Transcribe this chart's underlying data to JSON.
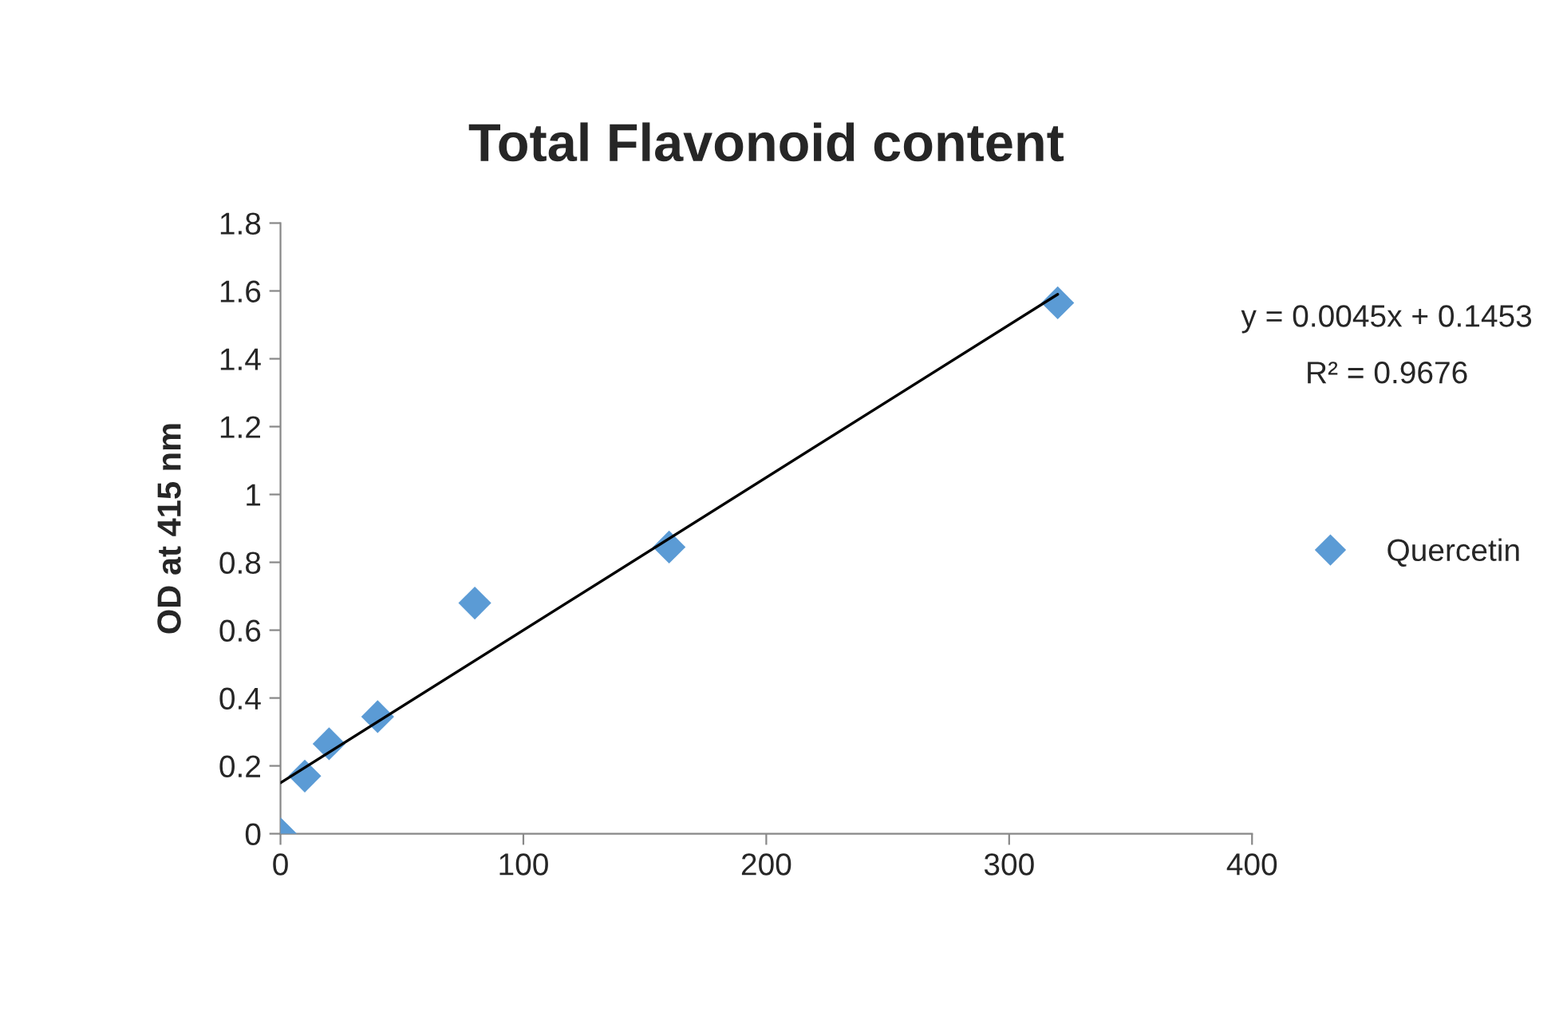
{
  "chart_data": {
    "type": "scatter",
    "title": "Total Flavonoid content",
    "ylabel": "OD at 415 nm",
    "x": [
      0,
      10,
      20,
      40,
      80,
      160,
      320
    ],
    "series": [
      {
        "name": "Quercetin",
        "color": "#5b9bd5",
        "values": [
          0,
          0.17,
          0.265,
          0.345,
          0.68,
          0.845,
          1.565
        ],
        "marker": "diamond"
      },
      {
        "type": "line",
        "color": "#000000",
        "x": [
          0,
          320
        ],
        "values": [
          0.15,
          1.59
        ],
        "marker": "none",
        "line_style": "solid"
      }
    ],
    "annotations": [
      "y = 0.0045x + 0.1453",
      "R² = 0.9676"
    ],
    "xlim": [
      0,
      400
    ],
    "xticks": [
      0,
      100,
      200,
      300,
      400
    ],
    "ylim": [
      0,
      1.8
    ],
    "yticks": [
      0,
      0.2,
      0.4,
      0.6,
      0.8,
      1,
      1.2,
      1.4,
      1.6,
      1.8
    ],
    "grid": false,
    "legend": "right"
  }
}
